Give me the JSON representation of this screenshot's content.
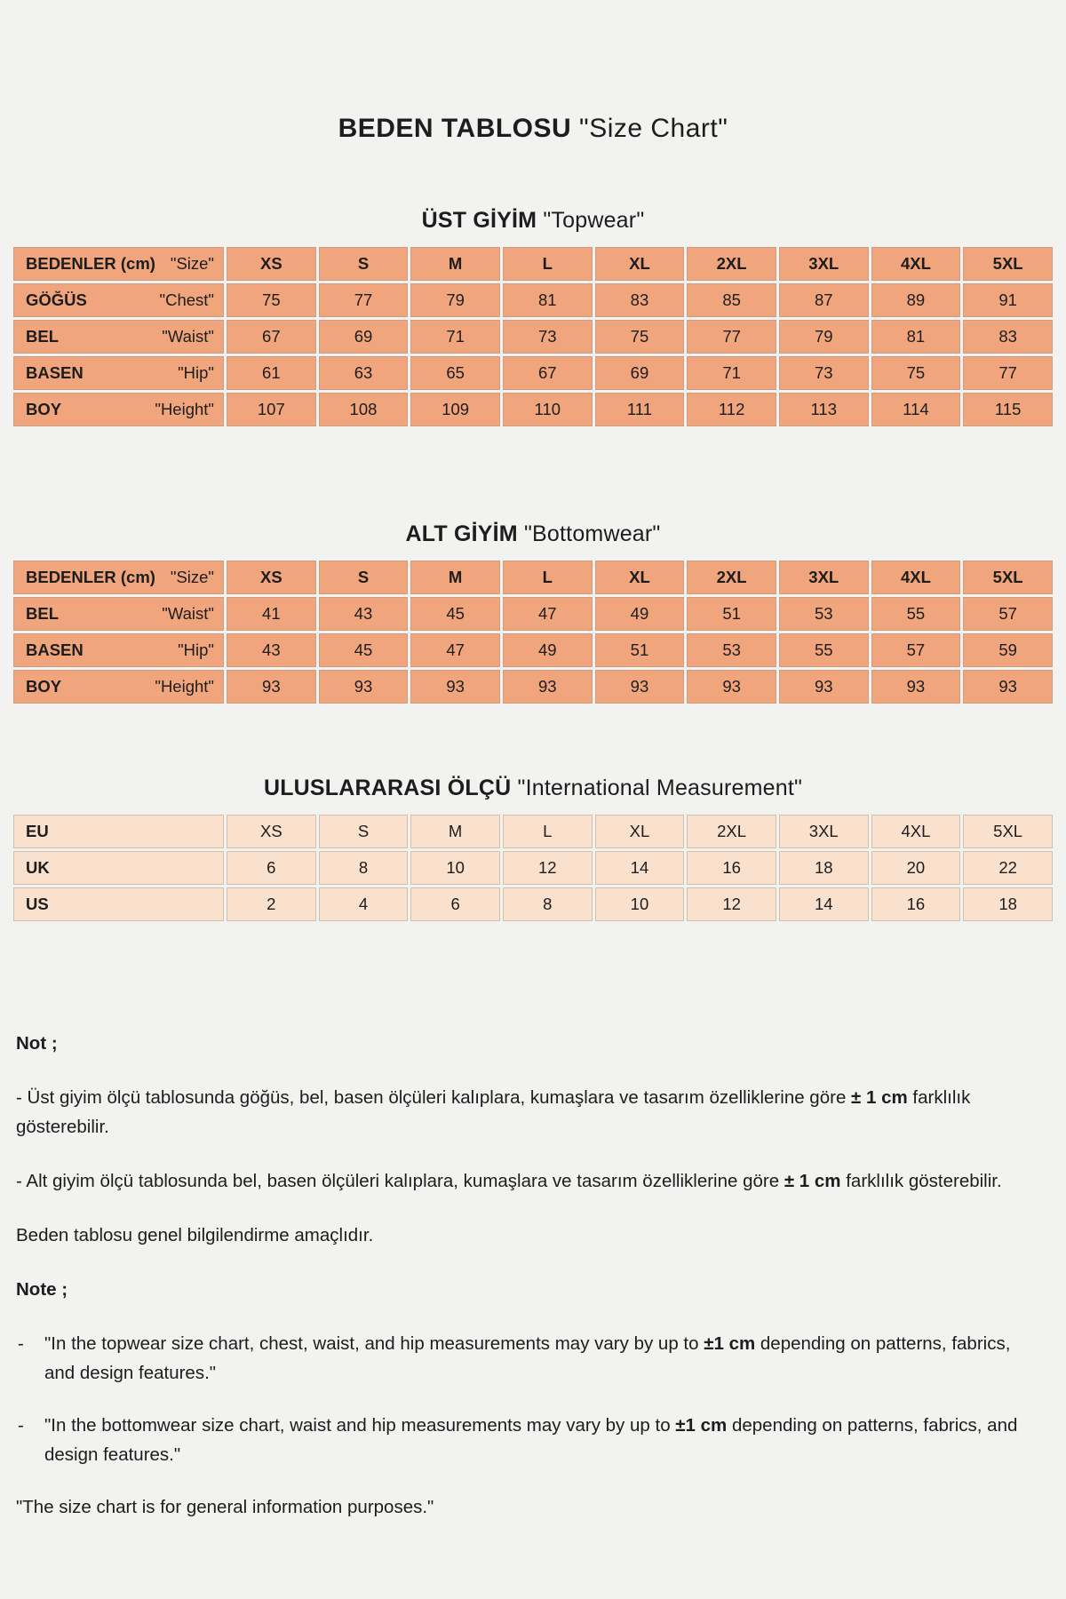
{
  "title": {
    "bold": "BEDEN TABLOSU",
    "quote": "\"Size Chart\""
  },
  "colors": {
    "page_bg": "#F2F2F0",
    "table_peach": "#F1A57D",
    "table_light_peach": "#FAE1CE",
    "text": "#1D1D1D"
  },
  "tables": [
    {
      "id": "topwear",
      "heading_bold": "ÜST GİYİM",
      "heading_quote": "\"Topwear\"",
      "header": {
        "label_bold": "BEDENLER (cm)",
        "label_quote": "\"Size\"",
        "sizes": [
          "XS",
          "S",
          "M",
          "L",
          "XL",
          "2XL",
          "3XL",
          "4XL",
          "5XL"
        ]
      },
      "rows": [
        {
          "label": "GÖĞÜS",
          "quote": "\"Chest\"",
          "values": [
            "75",
            "77",
            "79",
            "81",
            "83",
            "85",
            "87",
            "89",
            "91"
          ]
        },
        {
          "label": "BEL",
          "quote": "\"Waist\"",
          "values": [
            "67",
            "69",
            "71",
            "73",
            "75",
            "77",
            "79",
            "81",
            "83"
          ]
        },
        {
          "label": "BASEN",
          "quote": "\"Hip\"",
          "values": [
            "61",
            "63",
            "65",
            "67",
            "69",
            "71",
            "73",
            "75",
            "77"
          ]
        },
        {
          "label": "BOY",
          "quote": "\"Height\"",
          "values": [
            "107",
            "108",
            "109",
            "110",
            "111",
            "112",
            "113",
            "114",
            "115"
          ]
        }
      ]
    },
    {
      "id": "bottomwear",
      "heading_bold": "ALT GİYİM",
      "heading_quote": "\"Bottomwear\"",
      "header": {
        "label_bold": "BEDENLER (cm)",
        "label_quote": "\"Size\"",
        "sizes": [
          "XS",
          "S",
          "M",
          "L",
          "XL",
          "2XL",
          "3XL",
          "4XL",
          "5XL"
        ]
      },
      "rows": [
        {
          "label": "BEL",
          "quote": "\"Waist\"",
          "values": [
            "41",
            "43",
            "45",
            "47",
            "49",
            "51",
            "53",
            "55",
            "57"
          ]
        },
        {
          "label": "BASEN",
          "quote": "\"Hip\"",
          "values": [
            "43",
            "45",
            "47",
            "49",
            "51",
            "53",
            "55",
            "57",
            "59"
          ]
        },
        {
          "label": "BOY",
          "quote": "\"Height\"",
          "values": [
            "93",
            "93",
            "93",
            "93",
            "93",
            "93",
            "93",
            "93",
            "93"
          ]
        }
      ]
    },
    {
      "id": "international",
      "heading_bold": "ULUSLARARASI  ÖLÇÜ",
      "heading_quote": "\"International Measurement\"",
      "header": null,
      "rows": [
        {
          "label": "EU",
          "quote": "",
          "values": [
            "XS",
            "S",
            "M",
            "L",
            "XL",
            "2XL",
            "3XL",
            "4XL",
            "5XL"
          ]
        },
        {
          "label": "UK",
          "quote": "",
          "values": [
            "6",
            "8",
            "10",
            "12",
            "14",
            "16",
            "18",
            "20",
            "22"
          ]
        },
        {
          "label": "US",
          "quote": "",
          "values": [
            "2",
            "4",
            "6",
            "8",
            "10",
            "12",
            "14",
            "16",
            "18"
          ]
        }
      ]
    }
  ],
  "notes": [
    {
      "type": "heading",
      "segments": [
        {
          "text": "Not ;",
          "bold": true
        }
      ]
    },
    {
      "type": "para",
      "segments": [
        {
          "text": "- Üst giyim ölçü tablosunda göğüs, bel, basen ölçüleri kalıplara, kumaşlara ve tasarım özelliklerine göre ",
          "bold": false
        },
        {
          "text": "± 1 cm",
          "bold": true
        },
        {
          "text": " farklılık gösterebilir.",
          "bold": false
        }
      ]
    },
    {
      "type": "para",
      "segments": [
        {
          "text": "- Alt giyim ölçü tablosunda bel, basen ölçüleri kalıplara, kumaşlara ve tasarım özelliklerine göre ",
          "bold": false
        },
        {
          "text": "± 1 cm",
          "bold": true
        },
        {
          "text": " farklılık gösterebilir.",
          "bold": false
        }
      ]
    },
    {
      "type": "para",
      "segments": [
        {
          "text": "Beden tablosu genel bilgilendirme amaçlıdır.",
          "bold": false
        }
      ]
    },
    {
      "type": "heading",
      "segments": [
        {
          "text": "Note ;",
          "bold": true
        }
      ]
    },
    {
      "type": "bullet",
      "segments": [
        {
          "text": "\"In the topwear size chart, chest, waist, and hip measurements may vary by up to ",
          "bold": false
        },
        {
          "text": "±1 cm",
          "bold": true
        },
        {
          "text": " depending on patterns, fabrics, and design features.\"",
          "bold": false
        }
      ]
    },
    {
      "type": "bullet",
      "segments": [
        {
          "text": "\"In the bottomwear size chart, waist and hip measurements may vary by up to ",
          "bold": false
        },
        {
          "text": "±1 cm",
          "bold": true
        },
        {
          "text": " depending on patterns, fabrics, and design features.\"",
          "bold": false
        }
      ]
    },
    {
      "type": "para",
      "segments": [
        {
          "text": "\"The size chart is for general information purposes.\"",
          "bold": false
        }
      ]
    }
  ]
}
